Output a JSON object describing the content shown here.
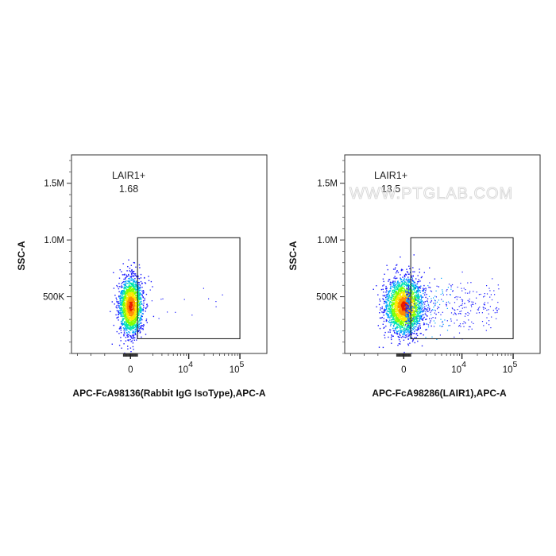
{
  "watermark": "WWW.PTGLAB.COM",
  "colors": {
    "frame": "#333333",
    "density": [
      "#1a1aff",
      "#00a2ff",
      "#00e5b0",
      "#7fff00",
      "#ffe600",
      "#ff8c00",
      "#e81a00"
    ]
  },
  "chart_data": [
    {
      "type": "scatter",
      "subtype": "flow-cytometry-density",
      "title": "",
      "xlabel": "APC-FcA98136(Rabbit IgG IsoType),APC-A",
      "ylabel": "SSC-A",
      "x_scale": "biexponential",
      "x_ticks": [
        {
          "value": 0,
          "label": "0"
        },
        {
          "value": 10000,
          "label": "10",
          "exp": "4"
        },
        {
          "value": 100000,
          "label": "10",
          "exp": "5"
        }
      ],
      "y_ticks": [
        {
          "value": 500000,
          "label": "500K"
        },
        {
          "value": 1000000,
          "label": "1.0M"
        },
        {
          "value": 1500000,
          "label": "1.5M"
        }
      ],
      "grid": false,
      "gate": {
        "name": "LAIR1+",
        "percent": "1.68",
        "x_range": [
          1000,
          100000
        ],
        "y_range": [
          130000,
          1020000
        ]
      },
      "population": {
        "center_x": 0,
        "center_y": 420000,
        "spread_x": "narrow",
        "sparse_tail_to_x": 100000
      }
    },
    {
      "type": "scatter",
      "subtype": "flow-cytometry-density",
      "title": "",
      "xlabel": "APC-FcA98286(LAIR1),APC-A",
      "ylabel": "SSC-A",
      "x_scale": "biexponential",
      "x_ticks": [
        {
          "value": 0,
          "label": "0"
        },
        {
          "value": 10000,
          "label": "10",
          "exp": "4"
        },
        {
          "value": 100000,
          "label": "10",
          "exp": "5"
        }
      ],
      "y_ticks": [
        {
          "value": 500000,
          "label": "500K"
        },
        {
          "value": 1000000,
          "label": "1.0M"
        },
        {
          "value": 1500000,
          "label": "1.5M"
        }
      ],
      "grid": false,
      "gate": {
        "name": "LAIR1+",
        "percent": "13.5",
        "x_range": [
          1000,
          100000
        ],
        "y_range": [
          130000,
          1020000
        ]
      },
      "population": {
        "center_x": 0,
        "center_y": 420000,
        "spread_x": "wide",
        "sparse_tail_to_x": 100000
      }
    }
  ]
}
